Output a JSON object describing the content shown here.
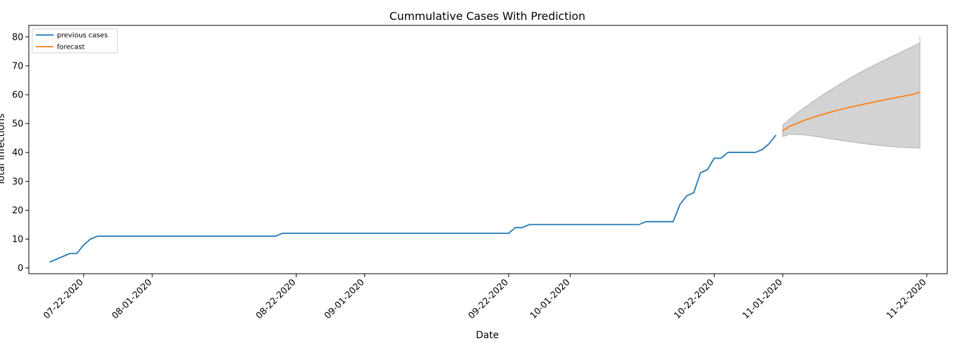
{
  "chart_data": {
    "type": "line",
    "title": "Cummulative Cases With Prediction",
    "xlabel": "Date",
    "ylabel": "Total infections",
    "x_axis_type": "date",
    "xlim": [
      "2020-07-14",
      "2020-11-25"
    ],
    "ylim": [
      -2,
      84
    ],
    "y_ticks": [
      0,
      10,
      20,
      30,
      40,
      50,
      60,
      70,
      80
    ],
    "x_ticks": [
      {
        "date": "2020-07-22",
        "label": "07-22-2020"
      },
      {
        "date": "2020-08-01",
        "label": "08-01-2020"
      },
      {
        "date": "2020-08-22",
        "label": "08-22-2020"
      },
      {
        "date": "2020-09-01",
        "label": "09-01-2020"
      },
      {
        "date": "2020-09-22",
        "label": "09-22-2020"
      },
      {
        "date": "2020-10-01",
        "label": "10-01-2020"
      },
      {
        "date": "2020-10-22",
        "label": "10-22-2020"
      },
      {
        "date": "2020-11-01",
        "label": "11-01-2020"
      },
      {
        "date": "2020-11-22",
        "label": "11-22-2020"
      }
    ],
    "x_tick_rotation": 45,
    "grid": false,
    "legend": {
      "placement": "top-left"
    },
    "series": [
      {
        "name": "previous cases",
        "color": "#1f77b4",
        "points": [
          [
            "2020-07-17",
            2
          ],
          [
            "2020-07-20",
            5
          ],
          [
            "2020-07-21",
            5
          ],
          [
            "2020-07-22",
            8
          ],
          [
            "2020-07-23",
            10
          ],
          [
            "2020-07-24",
            11
          ],
          [
            "2020-08-19",
            11
          ],
          [
            "2020-08-20",
            12
          ],
          [
            "2020-09-21",
            12
          ],
          [
            "2020-09-22",
            12
          ],
          [
            "2020-09-23",
            14
          ],
          [
            "2020-09-24",
            14
          ],
          [
            "2020-09-25",
            15
          ],
          [
            "2020-10-11",
            15
          ],
          [
            "2020-10-12",
            16
          ],
          [
            "2020-10-16",
            16
          ],
          [
            "2020-10-17",
            22
          ],
          [
            "2020-10-18",
            25
          ],
          [
            "2020-10-19",
            26
          ],
          [
            "2020-10-20",
            33
          ],
          [
            "2020-10-21",
            34
          ],
          [
            "2020-10-22",
            38
          ],
          [
            "2020-10-23",
            38
          ],
          [
            "2020-10-24",
            40
          ],
          [
            "2020-10-28",
            40
          ],
          [
            "2020-10-29",
            41
          ],
          [
            "2020-10-30",
            43
          ],
          [
            "2020-10-31",
            46
          ]
        ]
      },
      {
        "name": "forecast",
        "color": "#ff7f0e",
        "points": [
          [
            "2020-11-01",
            47.5
          ],
          [
            "2020-11-02",
            49
          ],
          [
            "2020-11-04",
            51
          ],
          [
            "2020-11-06",
            52.6
          ],
          [
            "2020-11-08",
            54
          ],
          [
            "2020-11-10",
            55.2
          ],
          [
            "2020-11-12",
            56.3
          ],
          [
            "2020-11-14",
            57.3
          ],
          [
            "2020-11-16",
            58.3
          ],
          [
            "2020-11-18",
            59.2
          ],
          [
            "2020-11-20",
            60.1
          ],
          [
            "2020-11-21",
            60.9
          ]
        ]
      }
    ],
    "confidence_band": {
      "color": "#d3d3d3",
      "edge_color": "#b0b0b0",
      "upper": [
        [
          "2020-11-01",
          49.5
        ],
        [
          "2020-11-03",
          53.5
        ],
        [
          "2020-11-05",
          57
        ],
        [
          "2020-11-07",
          60.2
        ],
        [
          "2020-11-09",
          63.2
        ],
        [
          "2020-11-11",
          66
        ],
        [
          "2020-11-13",
          68.6
        ],
        [
          "2020-11-15",
          71
        ],
        [
          "2020-11-17",
          73.3
        ],
        [
          "2020-11-19",
          75.6
        ],
        [
          "2020-11-21",
          77.9
        ],
        [
          "2020-11-21",
          80
        ]
      ],
      "lower": [
        [
          "2020-11-01",
          45.5
        ],
        [
          "2020-11-02",
          46.3
        ],
        [
          "2020-11-04",
          46.1
        ],
        [
          "2020-11-06",
          45.5
        ],
        [
          "2020-11-08",
          44.7
        ],
        [
          "2020-11-10",
          44
        ],
        [
          "2020-11-12",
          43.3
        ],
        [
          "2020-11-14",
          42.7
        ],
        [
          "2020-11-16",
          42.2
        ],
        [
          "2020-11-18",
          41.8
        ],
        [
          "2020-11-20",
          41.6
        ],
        [
          "2020-11-21",
          41.5
        ]
      ]
    }
  }
}
